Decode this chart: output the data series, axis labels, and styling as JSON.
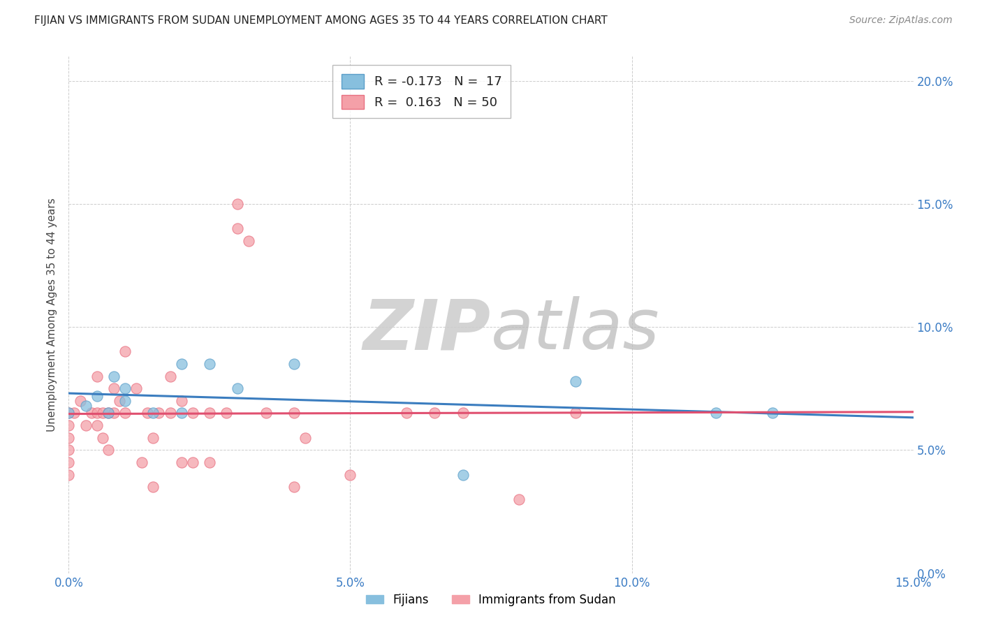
{
  "title": "FIJIAN VS IMMIGRANTS FROM SUDAN UNEMPLOYMENT AMONG AGES 35 TO 44 YEARS CORRELATION CHART",
  "source": "Source: ZipAtlas.com",
  "ylabel": "Unemployment Among Ages 35 to 44 years",
  "xlim": [
    0.0,
    0.15
  ],
  "ylim": [
    0.0,
    0.21
  ],
  "xticks": [
    0.0,
    0.05,
    0.1,
    0.15
  ],
  "xtick_labels": [
    "0.0%",
    "5.0%",
    "10.0%",
    "15.0%"
  ],
  "yticks": [
    0.0,
    0.05,
    0.1,
    0.15,
    0.2
  ],
  "ytick_labels_right": [
    "0.0%",
    "5.0%",
    "10.0%",
    "15.0%",
    "20.0%"
  ],
  "fijians_R": -0.173,
  "fijians_N": 17,
  "sudan_R": 0.163,
  "sudan_N": 50,
  "fijian_color": "#87BFDE",
  "sudan_color": "#F4A0A8",
  "fijian_edge_color": "#5A9EC9",
  "sudan_edge_color": "#E87080",
  "fijian_line_color": "#3B7DBF",
  "sudan_line_color": "#E05070",
  "watermark_zip": "ZIP",
  "watermark_atlas": "atlas",
  "fijians_scatter_x": [
    0.0,
    0.003,
    0.005,
    0.007,
    0.008,
    0.01,
    0.01,
    0.015,
    0.02,
    0.02,
    0.025,
    0.03,
    0.04,
    0.07,
    0.09,
    0.115,
    0.125
  ],
  "fijians_scatter_y": [
    0.065,
    0.068,
    0.072,
    0.065,
    0.08,
    0.075,
    0.07,
    0.065,
    0.085,
    0.065,
    0.085,
    0.075,
    0.085,
    0.04,
    0.078,
    0.065,
    0.065
  ],
  "sudan_scatter_x": [
    0.0,
    0.0,
    0.0,
    0.0,
    0.0,
    0.0,
    0.001,
    0.002,
    0.003,
    0.004,
    0.005,
    0.005,
    0.005,
    0.006,
    0.006,
    0.007,
    0.007,
    0.008,
    0.008,
    0.009,
    0.01,
    0.01,
    0.012,
    0.013,
    0.014,
    0.015,
    0.015,
    0.016,
    0.018,
    0.018,
    0.02,
    0.02,
    0.022,
    0.022,
    0.025,
    0.025,
    0.028,
    0.03,
    0.03,
    0.032,
    0.035,
    0.04,
    0.04,
    0.042,
    0.05,
    0.06,
    0.065,
    0.07,
    0.08,
    0.09
  ],
  "sudan_scatter_y": [
    0.065,
    0.06,
    0.055,
    0.05,
    0.045,
    0.04,
    0.065,
    0.07,
    0.06,
    0.065,
    0.065,
    0.08,
    0.06,
    0.055,
    0.065,
    0.065,
    0.05,
    0.075,
    0.065,
    0.07,
    0.065,
    0.09,
    0.075,
    0.045,
    0.065,
    0.055,
    0.035,
    0.065,
    0.08,
    0.065,
    0.07,
    0.045,
    0.065,
    0.045,
    0.045,
    0.065,
    0.065,
    0.15,
    0.14,
    0.135,
    0.065,
    0.035,
    0.065,
    0.055,
    0.04,
    0.065,
    0.065,
    0.065,
    0.03,
    0.065
  ],
  "background_color": "#ffffff",
  "grid_color": "#cccccc",
  "title_color": "#222222",
  "axis_label_color": "#444444",
  "tick_color": "#3B7CC4",
  "legend_border_color": "#aaaaaa"
}
